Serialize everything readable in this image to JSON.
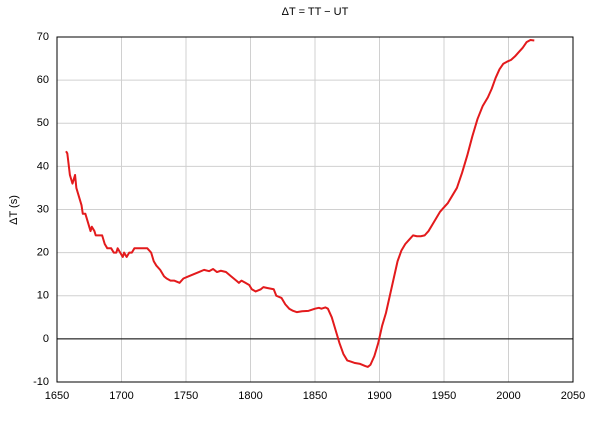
{
  "chart_data": {
    "type": "line",
    "title": "ΔT = TT − UT",
    "y_label": "ΔT (s)",
    "x": [
      1657,
      1658,
      1660,
      1662,
      1663,
      1664,
      1665,
      1667,
      1669,
      1670,
      1672,
      1674,
      1676,
      1677,
      1679,
      1680,
      1683,
      1685,
      1687,
      1689,
      1690,
      1692,
      1694,
      1696,
      1697,
      1699,
      1701,
      1702,
      1704,
      1706,
      1708,
      1710,
      1715,
      1720,
      1723,
      1725,
      1727,
      1730,
      1733,
      1735,
      1738,
      1741,
      1745,
      1748,
      1752,
      1756,
      1760,
      1764,
      1768,
      1771,
      1774,
      1777,
      1781,
      1785,
      1789,
      1791,
      1793,
      1796,
      1799,
      1801,
      1804,
      1808,
      1810,
      1813,
      1818,
      1820,
      1824,
      1827,
      1830,
      1833,
      1836,
      1840,
      1845,
      1850,
      1853,
      1855,
      1858,
      1860,
      1863,
      1866,
      1869,
      1872,
      1875,
      1878,
      1881,
      1885,
      1889,
      1891,
      1893,
      1896,
      1899,
      1902,
      1905,
      1908,
      1911,
      1914,
      1917,
      1920,
      1923,
      1926,
      1929,
      1932,
      1935,
      1938,
      1941,
      1944,
      1947,
      1950,
      1953,
      1956,
      1960,
      1964,
      1968,
      1972,
      1976,
      1980,
      1984,
      1987,
      1990,
      1993,
      1996,
      1999,
      2002,
      2005,
      2008,
      2011,
      2014,
      2017,
      2020
    ],
    "values": [
      43.5,
      43,
      38,
      36,
      37,
      38,
      35,
      33,
      31,
      29,
      29,
      27,
      25,
      26,
      25,
      24,
      24,
      24,
      22,
      21,
      21,
      21,
      20,
      20,
      21,
      20,
      19,
      20,
      19,
      20,
      20,
      21,
      21,
      21,
      20,
      18,
      17,
      16,
      14.5,
      14,
      13.5,
      13.5,
      13,
      14,
      14.5,
      15,
      15.5,
      16,
      15.7,
      16.2,
      15.5,
      15.8,
      15.5,
      14.5,
      13.5,
      13,
      13.5,
      13,
      12.5,
      11.5,
      11,
      11.5,
      12,
      11.8,
      11.5,
      10,
      9.5,
      8,
      7,
      6.5,
      6.2,
      6.4,
      6.5,
      7,
      7.2,
      7,
      7.3,
      7,
      5,
      2,
      -1,
      -3.5,
      -5,
      -5.3,
      -5.6,
      -5.8,
      -6.3,
      -6.5,
      -6,
      -4,
      -1,
      3,
      6,
      10,
      14,
      18,
      20.5,
      22,
      23,
      24,
      23.8,
      23.8,
      24,
      25,
      26.5,
      28,
      29.5,
      30.5,
      31.5,
      33,
      35,
      38.5,
      42.5,
      47,
      51,
      54,
      56,
      58,
      60.5,
      62.5,
      63.8,
      64.3,
      64.7,
      65.5,
      66.5,
      67.5,
      68.8,
      69.3,
      69.2
    ],
    "color": "#e31a1c",
    "xlim": [
      1650,
      2050
    ],
    "xticks": [
      1650,
      1700,
      1750,
      1800,
      1850,
      1900,
      1950,
      2000,
      2050
    ],
    "ylim": [
      -10,
      70
    ],
    "yticks": [
      -10,
      0,
      10,
      20,
      30,
      40,
      50,
      60,
      70
    ],
    "grid": true,
    "zero_line": true
  }
}
